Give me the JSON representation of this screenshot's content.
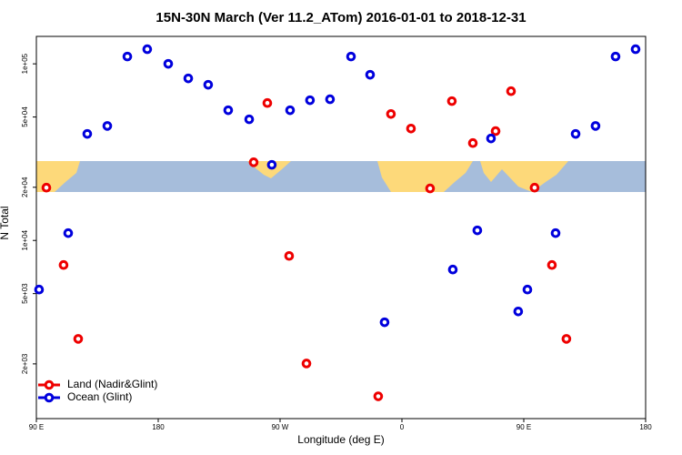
{
  "chart_data": {
    "type": "scatter",
    "title": "15N-30N March (Ver 11.2_ATom)   2016-01-01 to 2018-12-31",
    "xlabel": "Longitude (deg E)",
    "ylabel": "N Total",
    "xlim": [
      90,
      540
    ],
    "xticks": [
      {
        "value": 90,
        "label": "90 E"
      },
      180,
      {
        "value": 270,
        "label": "90 W"
      },
      {
        "value": 360,
        "label": "0"
      },
      {
        "value": 450,
        "label": "90 E"
      },
      {
        "value": 540,
        "label": "180"
      }
    ],
    "ylim": [
      980,
      143000
    ],
    "ylog": true,
    "yticks": [
      {
        "value": 2000,
        "label": "2e+03"
      },
      {
        "value": 5000,
        "label": "5e+03"
      },
      {
        "value": 10000,
        "label": "1e+04"
      },
      {
        "value": 20000,
        "label": "2e+04"
      },
      {
        "value": 50000,
        "label": "5e+04"
      },
      {
        "value": 100000,
        "label": "1e+05"
      }
    ],
    "legend": "bottom-left",
    "series": [
      {
        "name": "Land (Nadir&Glint)",
        "color": "#ee0000",
        "x": [
          97.4,
          110.1,
          120.9,
          250.5,
          260.6,
          276.7,
          289.5,
          342.5,
          351.9,
          366.7,
          380.8,
          396.9,
          412.4,
          429.2,
          440.6,
          458.0,
          470.8,
          481.5
        ],
        "values": [
          19900,
          7260,
          2770,
          27700,
          60000,
          8170,
          2010,
          1310,
          52000,
          43000,
          19700,
          61500,
          35600,
          41600,
          70000,
          19900,
          7260,
          2770
        ]
      },
      {
        "name": "Ocean (Glint)",
        "color": "#0000dd",
        "x": [
          92.0,
          113.5,
          127.6,
          142.4,
          157.2,
          171.9,
          187.4,
          202.2,
          216.9,
          231.7,
          247.2,
          263.9,
          277.4,
          292.1,
          306.9,
          322.4,
          336.5,
          347.2,
          397.6,
          415.7,
          425.8,
          445.9,
          452.7,
          473.5,
          488.3,
          503.0,
          517.8,
          532.6
        ],
        "values": [
          5270,
          11000,
          40100,
          44500,
          110000,
          121000,
          100000,
          82700,
          76100,
          54600,
          48500,
          26800,
          54600,
          62200,
          63000,
          110000,
          86700,
          3440,
          6840,
          11400,
          37800,
          3960,
          5270,
          11000,
          40100,
          44500,
          110000,
          121000
        ]
      }
    ]
  }
}
